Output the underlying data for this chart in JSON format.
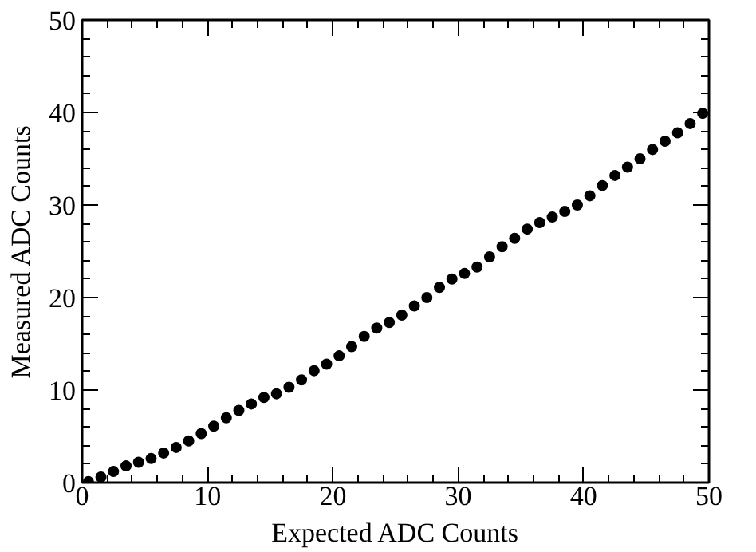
{
  "chart_data": {
    "type": "scatter",
    "xlabel": "Expected ADC Counts",
    "ylabel": "Measured ADC Counts",
    "xlim": [
      0,
      50
    ],
    "ylim": [
      0,
      50
    ],
    "xticks": [
      0,
      10,
      20,
      30,
      40,
      50
    ],
    "yticks": [
      0,
      10,
      20,
      30,
      40,
      50
    ],
    "grid": false,
    "marker": "circle",
    "series": [
      {
        "color": "#000000",
        "x": [
          0.5,
          1.5,
          2.5,
          3.5,
          4.5,
          5.5,
          6.5,
          7.5,
          8.5,
          9.5,
          10.5,
          11.5,
          12.5,
          13.5,
          14.5,
          15.5,
          16.5,
          17.5,
          18.5,
          19.5,
          20.5,
          21.5,
          22.5,
          23.5,
          24.5,
          25.5,
          26.5,
          27.5,
          28.5,
          29.5,
          30.5,
          31.5,
          32.5,
          33.5,
          34.5,
          35.5,
          36.5,
          37.5,
          38.5,
          39.5,
          40.5,
          41.5,
          42.5,
          43.5,
          44.5,
          45.5,
          46.5,
          47.5,
          48.5,
          49.5
        ],
        "values": [
          0.1,
          0.6,
          1.2,
          1.8,
          2.2,
          2.6,
          3.2,
          3.8,
          4.5,
          5.3,
          6.1,
          7.0,
          7.8,
          8.5,
          9.2,
          9.6,
          10.3,
          11.1,
          12.1,
          12.8,
          13.7,
          14.7,
          15.8,
          16.7,
          17.3,
          18.1,
          19.1,
          20.0,
          21.1,
          22.0,
          22.6,
          23.3,
          24.4,
          25.5,
          26.4,
          27.4,
          28.1,
          28.7,
          29.3,
          30.0,
          31.0,
          32.1,
          33.2,
          34.1,
          35.0,
          36.0,
          36.9,
          37.8,
          38.8,
          39.9
        ]
      }
    ]
  }
}
